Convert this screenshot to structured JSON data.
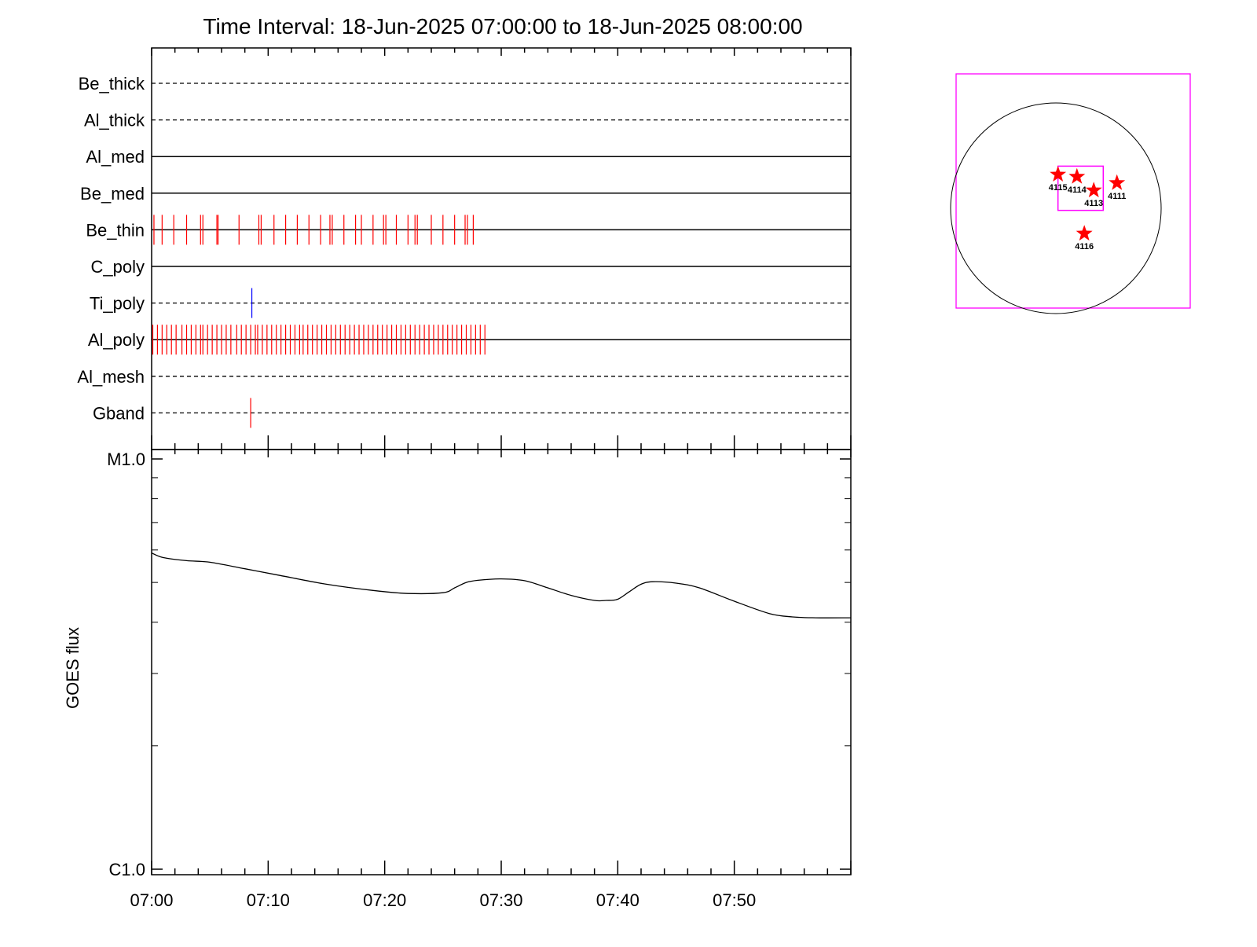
{
  "chart_data": [
    {
      "type": "timeline",
      "title": "Time Interval: 18-Jun-2025 07:00:00 to 18-Jun-2025 08:00:00",
      "x_range_minutes": [
        0,
        60
      ],
      "channels": [
        {
          "name": "Be_thick",
          "style": "dashed",
          "events": [],
          "event_color": "#ff0000"
        },
        {
          "name": "Al_thick",
          "style": "dashed",
          "events": [],
          "event_color": "#ff0000"
        },
        {
          "name": "Al_med",
          "style": "solid",
          "events": [],
          "event_color": "#ff0000"
        },
        {
          "name": "Be_med",
          "style": "solid",
          "events": [],
          "event_color": "#ff0000"
        },
        {
          "name": "Be_thin",
          "style": "solid",
          "event_color": "#ff0000",
          "events": [
            0.2,
            0.9,
            1.9,
            3.0,
            4.2,
            4.4,
            5.6,
            5.7,
            7.5,
            9.2,
            9.4,
            10.5,
            11.5,
            12.5,
            13.5,
            14.5,
            15.3,
            15.5,
            16.5,
            17.5,
            18.0,
            19.0,
            19.9,
            20.1,
            21.0,
            22.0,
            22.6,
            22.8,
            24.0,
            25.0,
            26.0,
            26.9,
            27.1,
            27.6
          ]
        },
        {
          "name": "C_poly",
          "style": "solid",
          "events": [],
          "event_color": "#ff0000"
        },
        {
          "name": "Ti_poly",
          "style": "dashed",
          "events": [
            8.6
          ],
          "event_color": "#0000ff"
        },
        {
          "name": "Al_poly",
          "style": "solid",
          "event_color": "#ff0000",
          "events": [
            0.1,
            0.5,
            0.9,
            1.3,
            1.7,
            2.1,
            2.6,
            3.0,
            3.4,
            3.8,
            4.2,
            4.4,
            4.8,
            5.2,
            5.6,
            6.0,
            6.4,
            6.8,
            7.3,
            7.7,
            8.1,
            8.5,
            8.9,
            9.1,
            9.5,
            9.9,
            10.3,
            10.7,
            11.1,
            11.5,
            11.9,
            12.3,
            12.7,
            13.0,
            13.4,
            13.8,
            14.2,
            14.6,
            15.0,
            15.4,
            15.8,
            16.2,
            16.6,
            17.0,
            17.4,
            17.8,
            18.2,
            18.6,
            19.0,
            19.4,
            19.8,
            20.2,
            20.6,
            21.0,
            21.4,
            21.8,
            22.2,
            22.6,
            23.0,
            23.4,
            23.8,
            24.2,
            24.6,
            25.0,
            25.4,
            25.8,
            26.2,
            26.6,
            27.0,
            27.4,
            27.8,
            28.2,
            28.6
          ]
        },
        {
          "name": "Al_mesh",
          "style": "dashed",
          "events": [],
          "event_color": "#ff0000"
        },
        {
          "name": "Gband",
          "style": "dashed",
          "events": [
            8.5
          ],
          "event_color": "#ff0000"
        }
      ]
    },
    {
      "type": "line",
      "ylabel": "GOES flux",
      "yscale": "log",
      "ylim": [
        1e-06,
        1e-05
      ],
      "yticks": [
        {
          "value": 1e-06,
          "label": "C1.0"
        },
        {
          "value": 1e-05,
          "label": "M1.0"
        }
      ],
      "xlim": [
        0,
        60
      ],
      "xticks": [
        {
          "value": 0,
          "label": "07:00"
        },
        {
          "value": 10,
          "label": "07:10"
        },
        {
          "value": 20,
          "label": "07:20"
        },
        {
          "value": 30,
          "label": "07:30"
        },
        {
          "value": 40,
          "label": "07:40"
        },
        {
          "value": 50,
          "label": "07:50"
        }
      ],
      "series": [
        {
          "x": [
            0,
            1,
            3,
            5,
            8,
            11,
            15,
            19,
            22,
            25,
            26,
            27,
            28,
            30,
            32,
            34,
            36,
            38,
            39,
            40,
            41,
            42,
            43,
            45,
            47,
            50,
            53,
            55,
            57,
            60
          ],
          "y": [
            5.9e-06,
            5.75e-06,
            5.65e-06,
            5.6e-06,
            5.4e-06,
            5.2e-06,
            4.95e-06,
            4.78e-06,
            4.7e-06,
            4.72e-06,
            4.85e-06,
            5e-06,
            5.06e-06,
            5.1e-06,
            5.05e-06,
            4.85e-06,
            4.65e-06,
            4.52e-06,
            4.52e-06,
            4.55e-06,
            4.75e-06,
            4.95e-06,
            5.02e-06,
            4.98e-06,
            4.85e-06,
            4.5e-06,
            4.2e-06,
            4.12e-06,
            4.1e-06,
            4.1e-06
          ],
          "color": "#000000"
        }
      ]
    },
    {
      "type": "scatter",
      "x_range": [
        -1,
        1
      ],
      "y_range": [
        -1,
        1
      ],
      "markers": [
        {
          "label": "4115",
          "x": 0.02,
          "y": 0.32
        },
        {
          "label": "4114",
          "x": 0.2,
          "y": 0.3
        },
        {
          "label": "4113",
          "x": 0.36,
          "y": 0.17
        },
        {
          "label": "4111",
          "x": 0.58,
          "y": 0.24
        },
        {
          "label": "4116",
          "x": 0.27,
          "y": -0.24
        }
      ],
      "marker_color": "#ff0000",
      "frame_color": "#ff00ff",
      "zoom_box": {
        "x0": 0.02,
        "y0": -0.02,
        "x1": 0.45,
        "y1": 0.4
      }
    }
  ]
}
